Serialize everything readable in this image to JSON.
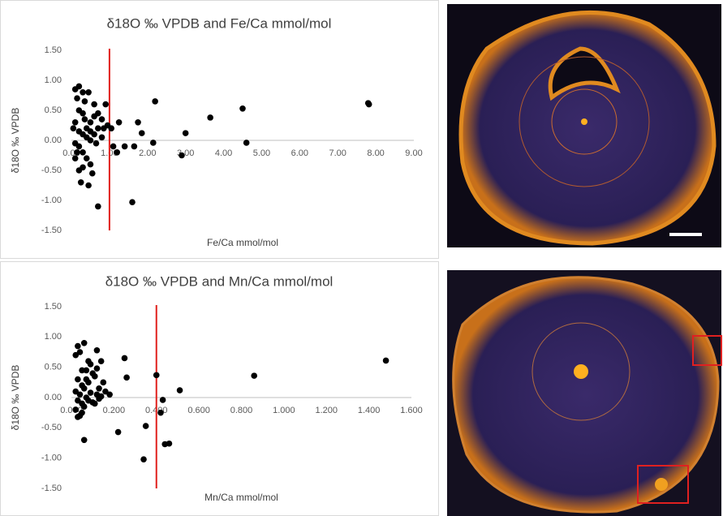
{
  "chart_data": [
    {
      "type": "scatter",
      "title": "δ18O ‰ VPDB and Fe/Ca mmol/mol",
      "x_label": "Fe/Ca mmol/mol",
      "y_label": "δ18O ‰ VPDB",
      "color": "#000000",
      "ref_x": 1,
      "ref_color": "#e0201c",
      "x": [
        0.1,
        0.2,
        0.15,
        0.3,
        0.45,
        0.1,
        0.2,
        0.3,
        0.35,
        0.4,
        0.5,
        0.6,
        0.7,
        0.8,
        0.9,
        0.2,
        0.3,
        0.4,
        0.5,
        0.6,
        0.7,
        0.1,
        0.2,
        0.3,
        0.4,
        0.5,
        0.1,
        0.2,
        0.15,
        0.3,
        0.25,
        0.45,
        0.55,
        0.7,
        0.6,
        0.85,
        0.95,
        1.05,
        1.1,
        1.2,
        1.25,
        1.4,
        1.65,
        1.75,
        1.85,
        1.6,
        2.15,
        2.2,
        2.9,
        3.0,
        3.65,
        4.5,
        4.6,
        7.8,
        7.82,
        0.05,
        0.35,
        0.5,
        0.65,
        0.8
      ],
      "values": [
        0.85,
        0.9,
        0.7,
        0.8,
        0.8,
        0.3,
        0.5,
        0.45,
        0.35,
        0.2,
        0.3,
        0.4,
        0.45,
        0.35,
        0.6,
        0.15,
        0.1,
        0.05,
        0.0,
        0.1,
        0.2,
        -0.05,
        -0.1,
        -0.2,
        -0.3,
        -0.4,
        -0.3,
        -0.5,
        -0.2,
        -0.45,
        -0.7,
        -0.75,
        -0.55,
        -1.1,
        0.6,
        0.2,
        0.25,
        0.2,
        -0.1,
        -0.2,
        0.3,
        -0.1,
        -0.1,
        0.3,
        0.12,
        -1.03,
        -0.04,
        0.65,
        -0.25,
        0.12,
        0.38,
        0.53,
        -0.04,
        0.62,
        0.6,
        0.2,
        0.65,
        0.15,
        -0.05,
        0.05
      ],
      "xlim": [
        0,
        9
      ],
      "ylim": [
        -1.5,
        1.5
      ],
      "xticks": [
        {
          "value": 0,
          "label": "0.00"
        },
        {
          "value": 1,
          "label": "1.00"
        },
        {
          "value": 2,
          "label": "2.00"
        },
        {
          "value": 3,
          "label": "3.00"
        },
        {
          "value": 4,
          "label": "4.00"
        },
        {
          "value": 5,
          "label": "5.00"
        },
        {
          "value": 6,
          "label": "6.00"
        },
        {
          "value": 7,
          "label": "7.00"
        },
        {
          "value": 8,
          "label": "8.00"
        },
        {
          "value": 9,
          "label": "9.00"
        }
      ],
      "yticks": [
        {
          "value": 1.5,
          "label": "1.50"
        },
        {
          "value": 1,
          "label": "1.00"
        },
        {
          "value": 0.5,
          "label": "0.50"
        },
        {
          "value": 0,
          "label": "0.00"
        },
        {
          "value": -0.5,
          "label": "-0.50"
        },
        {
          "value": -1,
          "label": "-1.00"
        },
        {
          "value": -1.5,
          "label": "-1.50"
        }
      ]
    },
    {
      "type": "scatter",
      "title": "δ18O ‰ VPDB and Mn/Ca mmol/mol",
      "x_label": "Mn/Ca mmol/mol",
      "y_label": "δ18O ‰ VPDB",
      "color": "#000000",
      "ref_x": 0.4,
      "ref_color": "#e0201c",
      "x": [
        0.02,
        0.04,
        0.03,
        0.06,
        0.08,
        0.05,
        0.07,
        0.1,
        0.12,
        0.14,
        0.03,
        0.05,
        0.08,
        0.11,
        0.13,
        0.15,
        0.02,
        0.04,
        0.06,
        0.09,
        0.12,
        0.16,
        0.18,
        0.03,
        0.05,
        0.07,
        0.1,
        0.13,
        0.02,
        0.04,
        0.06,
        0.08,
        0.11,
        0.14,
        0.03,
        0.05,
        0.07,
        0.09,
        0.12,
        0.06,
        0.22,
        0.25,
        0.26,
        0.34,
        0.35,
        0.4,
        0.42,
        0.43,
        0.44,
        0.46,
        0.51,
        0.86,
        1.48
      ],
      "values": [
        0.7,
        0.75,
        0.85,
        0.9,
        0.6,
        0.45,
        0.3,
        0.4,
        0.78,
        0.6,
        0.3,
        0.2,
        0.25,
        0.35,
        0.15,
        0.25,
        0.1,
        0.05,
        0.15,
        0.08,
        0.05,
        0.1,
        0.05,
        -0.05,
        -0.1,
        0.0,
        -0.08,
        -0.02,
        -0.2,
        -0.3,
        -0.15,
        -0.05,
        -0.1,
        0.02,
        -0.32,
        -0.25,
        0.45,
        0.55,
        0.48,
        -0.7,
        -0.57,
        0.65,
        0.33,
        -1.02,
        -0.47,
        0.37,
        -0.25,
        -0.04,
        -0.77,
        -0.76,
        0.12,
        0.36,
        0.61
      ],
      "xlim": [
        0,
        1.6
      ],
      "ylim": [
        -1.5,
        1.5
      ],
      "xticks": [
        {
          "value": 0,
          "label": "0.000"
        },
        {
          "value": 0.2,
          "label": "0.200"
        },
        {
          "value": 0.4,
          "label": "0.400"
        },
        {
          "value": 0.6,
          "label": "0.600"
        },
        {
          "value": 0.8,
          "label": "0.800"
        },
        {
          "value": 1,
          "label": "1.000"
        },
        {
          "value": 1.2,
          "label": "1.200"
        },
        {
          "value": 1.4,
          "label": "1.400"
        },
        {
          "value": 1.6,
          "label": "1.600"
        }
      ],
      "yticks": [
        {
          "value": 1.5,
          "label": "1.50"
        },
        {
          "value": 1,
          "label": "1.00"
        },
        {
          "value": 0.5,
          "label": "0.50"
        },
        {
          "value": 0,
          "label": "0.00"
        },
        {
          "value": -0.5,
          "label": "-0.50"
        },
        {
          "value": -1,
          "label": "-1.00"
        },
        {
          "value": -1.5,
          "label": "-1.50"
        }
      ]
    }
  ]
}
